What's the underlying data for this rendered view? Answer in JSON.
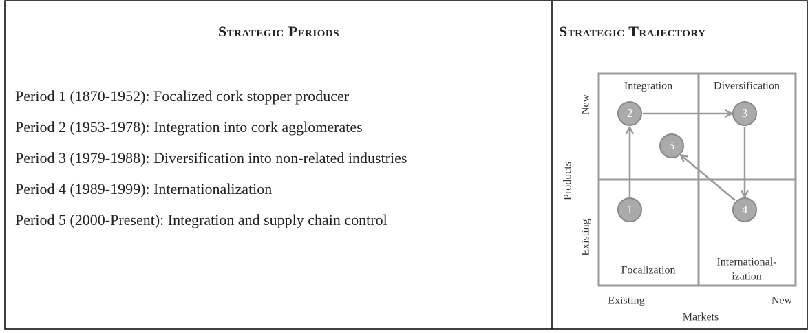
{
  "left": {
    "title": "Strategic Periods",
    "periods": [
      "Period 1 (1870-1952): Focalized cork stopper producer",
      "Period 2 (1953-1978): Integration into cork agglomerates",
      "Period 3 (1979-1988): Diversification into non-related industries",
      "Period 4 (1989-1999): Internationalization",
      "Period 5 (2000-Present): Integration and supply chain control"
    ]
  },
  "right": {
    "title": "Strategic Trajectory",
    "quadrants": {
      "top_left": "Integration",
      "top_right": "Diversification",
      "bottom_left": "Focalization",
      "bottom_right": [
        "International-",
        "ization"
      ]
    },
    "y_axis": {
      "label": "Products",
      "top": "New",
      "bottom": "Existing"
    },
    "x_axis": {
      "label": "Markets",
      "left": "Existing",
      "right": "New"
    },
    "nodes": [
      "1",
      "2",
      "3",
      "4",
      "5"
    ]
  }
}
